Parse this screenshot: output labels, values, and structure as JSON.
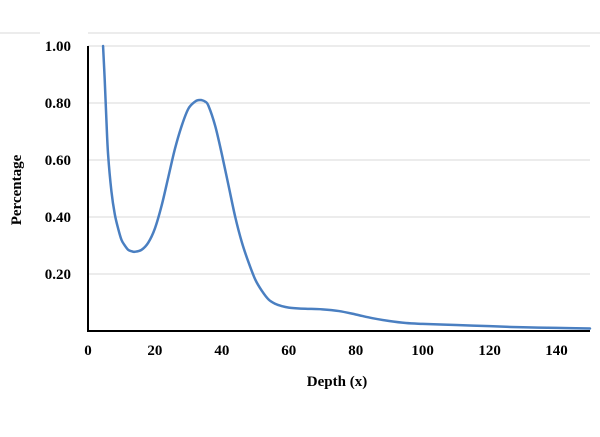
{
  "chart_data": {
    "type": "line",
    "title": "",
    "xlabel": "Depth (x)",
    "ylabel": "Percentage",
    "xlim": [
      0,
      150
    ],
    "ylim": [
      0,
      1.0
    ],
    "x_ticks": [
      0,
      20,
      40,
      60,
      80,
      100,
      120,
      140
    ],
    "y_ticks": [
      0.2,
      0.4,
      0.6,
      0.8,
      1.0
    ],
    "y_tick_labels": [
      "0.20",
      "0.40",
      "0.60",
      "0.80",
      "1.00"
    ],
    "grid": "horizontal",
    "legend": "none",
    "line_color": "#4a7fc1",
    "grid_color": "#d9d9d9",
    "series": [
      {
        "x": [
          4.5,
          5,
          5.5,
          6,
          7,
          8,
          9,
          10,
          11,
          12,
          13,
          14,
          16,
          18,
          20,
          22,
          24,
          26,
          28,
          30,
          32,
          33,
          34,
          35,
          36,
          38,
          40,
          42,
          44,
          46,
          48,
          50,
          52,
          54,
          56,
          58,
          60,
          62,
          65,
          70,
          75,
          80,
          85,
          90,
          95,
          100,
          110,
          120,
          130,
          140,
          150
        ],
        "y": [
          1.0,
          0.88,
          0.74,
          0.62,
          0.49,
          0.41,
          0.36,
          0.32,
          0.3,
          0.285,
          0.28,
          0.278,
          0.285,
          0.31,
          0.36,
          0.44,
          0.54,
          0.64,
          0.72,
          0.78,
          0.805,
          0.81,
          0.81,
          0.805,
          0.79,
          0.72,
          0.62,
          0.51,
          0.4,
          0.31,
          0.24,
          0.18,
          0.14,
          0.11,
          0.095,
          0.087,
          0.082,
          0.08,
          0.078,
          0.076,
          0.07,
          0.058,
          0.045,
          0.035,
          0.028,
          0.025,
          0.021,
          0.017,
          0.013,
          0.011,
          0.009
        ]
      }
    ]
  }
}
